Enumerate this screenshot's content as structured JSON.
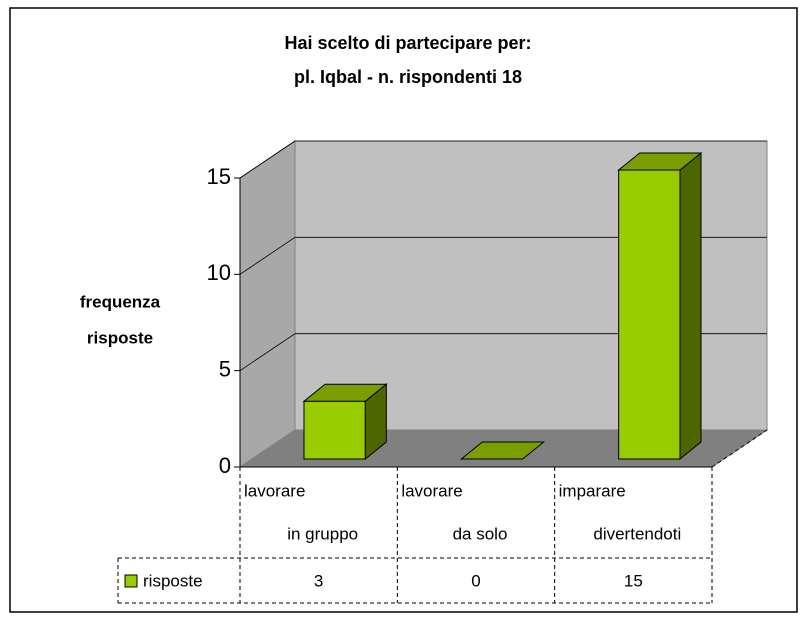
{
  "chart_data": {
    "type": "bar",
    "title": [
      "Hai scelto di partecipare per:",
      "pl. Iqbal - n. rispondenti 18"
    ],
    "y_label": [
      "frequenza",
      "risposte"
    ],
    "categories": [
      [
        "lavorare",
        "in gruppo"
      ],
      [
        "lavorare",
        "da solo"
      ],
      [
        "imparare",
        "divertendoti"
      ]
    ],
    "series": [
      {
        "name": "risposte",
        "color": "#99cc00",
        "values": [
          3,
          0,
          15
        ]
      }
    ],
    "ylim": [
      0,
      15
    ],
    "yticks": [
      0,
      5,
      10,
      15
    ],
    "grid": true,
    "data_table": true
  }
}
